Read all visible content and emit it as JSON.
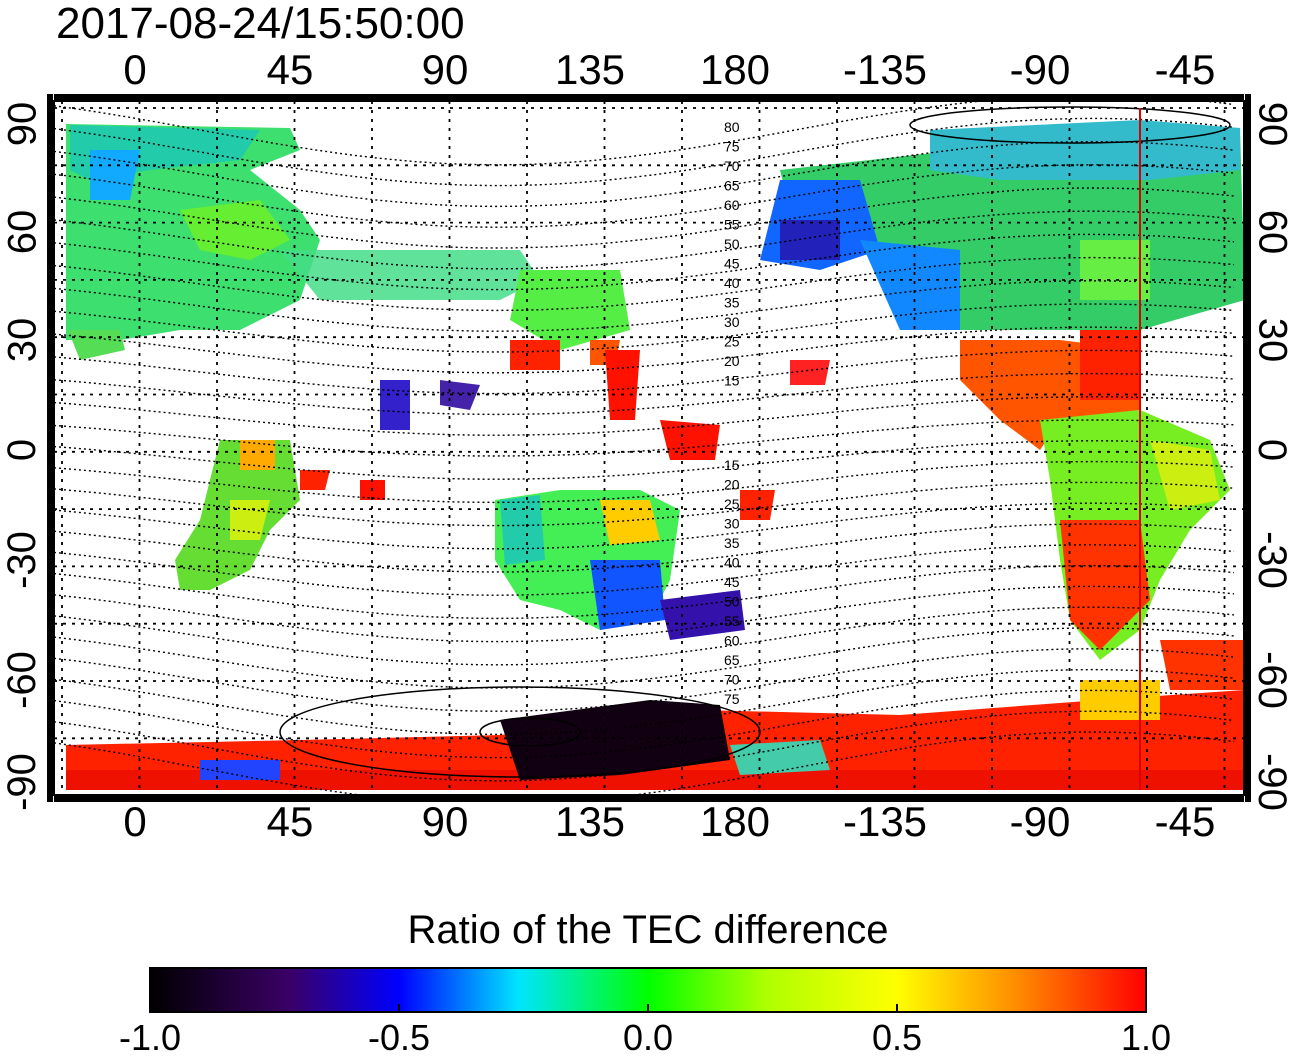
{
  "title": "2017-08-24/15:50:00",
  "x_ticks": [
    "0",
    "45",
    "90",
    "135",
    "180",
    "-135",
    "-90",
    "-45"
  ],
  "y_ticks": [
    "90",
    "60",
    "30",
    "0",
    "-30",
    "-60",
    "-90"
  ],
  "magnetic_lat_labels": {
    "north": [
      "80",
      "75",
      "70",
      "65",
      "60",
      "55",
      "50",
      "45",
      "40",
      "35",
      "30",
      "25",
      "20",
      "15"
    ],
    "south": [
      "15",
      "20",
      "25",
      "30",
      "35",
      "40",
      "45",
      "50",
      "55",
      "60",
      "65",
      "70",
      "75"
    ]
  },
  "colorbar": {
    "title": "Ratio of the TEC difference",
    "ticks": [
      "-1.0",
      "-0.5",
      "0.0",
      "0.5",
      "1.0"
    ],
    "range": [
      -1.0,
      1.0
    ],
    "colors": [
      "#000000",
      "#3a0066",
      "#0000ff",
      "#00e5ff",
      "#00ff00",
      "#ffff00",
      "#ff8c00",
      "#ff0000"
    ]
  },
  "marker_line": {
    "longitude": -60,
    "color": "#dd0000"
  },
  "colors": {
    "frame": "#000000",
    "grid": "#000000"
  }
}
